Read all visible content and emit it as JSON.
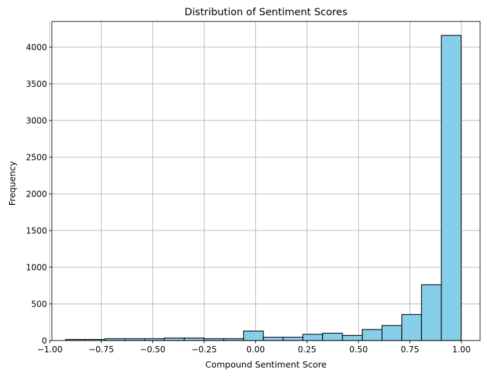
{
  "chart_data": {
    "type": "bar",
    "title": "Distribution of Sentiment Scores",
    "xlabel": "Compound Sentiment Score",
    "ylabel": "Frequency",
    "xlim": [
      -1.0,
      1.0
    ],
    "ylim": [
      0,
      4350
    ],
    "grid": true,
    "bar_color": "#87CEEB",
    "edge_color": "#000000",
    "grid_color": "#b0b0b0",
    "x_ticks": [
      -1.0,
      -0.75,
      -0.5,
      -0.25,
      0.0,
      0.25,
      0.5,
      0.75,
      1.0
    ],
    "x_tick_labels": [
      "−1.00",
      "−0.75",
      "−0.50",
      "−0.25",
      "0.00",
      "0.25",
      "0.50",
      "0.75",
      "1.00"
    ],
    "y_ticks": [
      0,
      500,
      1000,
      1500,
      2000,
      2500,
      3000,
      3500,
      4000
    ],
    "y_tick_labels": [
      "0",
      "500",
      "1000",
      "1500",
      "2000",
      "2500",
      "3000",
      "3500",
      "4000"
    ],
    "bins": [
      {
        "x0": -0.9235,
        "x1": -0.8274,
        "count": 15
      },
      {
        "x0": -0.8274,
        "x1": -0.7313,
        "count": 15
      },
      {
        "x0": -0.7313,
        "x1": -0.6352,
        "count": 25
      },
      {
        "x0": -0.6352,
        "x1": -0.5391,
        "count": 25
      },
      {
        "x0": -0.5391,
        "x1": -0.443,
        "count": 25
      },
      {
        "x0": -0.443,
        "x1": -0.3469,
        "count": 35
      },
      {
        "x0": -0.3469,
        "x1": -0.2508,
        "count": 35
      },
      {
        "x0": -0.2508,
        "x1": -0.1547,
        "count": 25
      },
      {
        "x0": -0.1547,
        "x1": -0.0586,
        "count": 25
      },
      {
        "x0": -0.0586,
        "x1": 0.0375,
        "count": 130
      },
      {
        "x0": 0.0375,
        "x1": 0.1336,
        "count": 45
      },
      {
        "x0": 0.1336,
        "x1": 0.2297,
        "count": 45
      },
      {
        "x0": 0.2297,
        "x1": 0.3258,
        "count": 85
      },
      {
        "x0": 0.3258,
        "x1": 0.4219,
        "count": 100
      },
      {
        "x0": 0.4219,
        "x1": 0.518,
        "count": 70
      },
      {
        "x0": 0.518,
        "x1": 0.6141,
        "count": 150
      },
      {
        "x0": 0.6141,
        "x1": 0.7102,
        "count": 205
      },
      {
        "x0": 0.7102,
        "x1": 0.8063,
        "count": 355
      },
      {
        "x0": 0.8063,
        "x1": 0.9024,
        "count": 760
      },
      {
        "x0": 0.9024,
        "x1": 0.9985,
        "count": 4160
      }
    ]
  }
}
